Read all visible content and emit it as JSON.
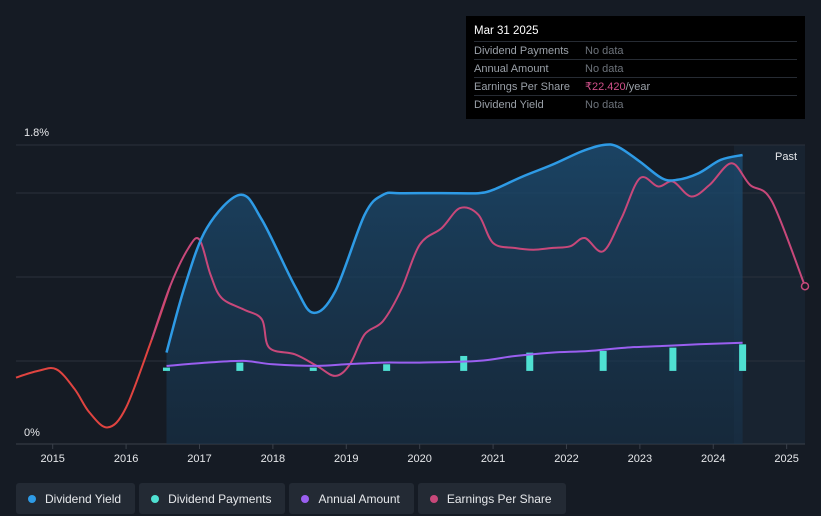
{
  "tooltip": {
    "date": "Mar 31 2025",
    "rows": [
      {
        "label": "Dividend Payments",
        "value": "No data"
      },
      {
        "label": "Annual Amount",
        "value": "No data"
      },
      {
        "label": "Earnings Per Share",
        "value": "₹22.420",
        "unit": "/year"
      },
      {
        "label": "Dividend Yield",
        "value": "No data"
      }
    ]
  },
  "legend": [
    {
      "label": "Dividend Yield",
      "color": "#2e9be6"
    },
    {
      "label": "Dividend Payments",
      "color": "#4fe0d2"
    },
    {
      "label": "Annual Amount",
      "color": "#9a5ff0"
    },
    {
      "label": "Earnings Per Share",
      "color": "#c8487a"
    }
  ],
  "chart_data": {
    "type": "line",
    "title": "",
    "ylabel": "",
    "xlabel": "",
    "y_axis_labels": {
      "top": "1.8%",
      "bottom": "0%"
    },
    "ylim": [
      0,
      1.8
    ],
    "xlim": [
      2014.5,
      2025.25
    ],
    "x_ticks": [
      "2015",
      "2016",
      "2017",
      "2018",
      "2019",
      "2020",
      "2021",
      "2022",
      "2023",
      "2024",
      "2025"
    ],
    "past_label": "Past",
    "series": [
      {
        "name": "Dividend Yield",
        "unit": "%",
        "color": "#2e9be6",
        "points": [
          [
            2016.55,
            0.55
          ],
          [
            2016.8,
            0.95
          ],
          [
            2017.1,
            1.3
          ],
          [
            2017.55,
            1.5
          ],
          [
            2017.85,
            1.35
          ],
          [
            2018.3,
            0.95
          ],
          [
            2018.55,
            0.79
          ],
          [
            2018.85,
            0.92
          ],
          [
            2019.25,
            1.38
          ],
          [
            2019.5,
            1.5
          ],
          [
            2019.75,
            1.51
          ],
          [
            2020.5,
            1.51
          ],
          [
            2020.8,
            1.51
          ],
          [
            2021.0,
            1.53
          ],
          [
            2021.4,
            1.61
          ],
          [
            2021.8,
            1.68
          ],
          [
            2022.2,
            1.76
          ],
          [
            2022.5,
            1.8
          ],
          [
            2022.7,
            1.79
          ],
          [
            2023.0,
            1.7
          ],
          [
            2023.3,
            1.6
          ],
          [
            2023.5,
            1.59
          ],
          [
            2023.8,
            1.63
          ],
          [
            2024.1,
            1.71
          ],
          [
            2024.4,
            1.74
          ]
        ]
      },
      {
        "name": "Earnings Per Share",
        "unit": "indexed",
        "color": "#c8487a",
        "faded_before": 2016.55,
        "faded_color": "#e04440",
        "points": [
          [
            2014.5,
            0.4
          ],
          [
            2014.8,
            0.44
          ],
          [
            2015.05,
            0.45
          ],
          [
            2015.3,
            0.33
          ],
          [
            2015.5,
            0.19
          ],
          [
            2015.75,
            0.1
          ],
          [
            2016.0,
            0.22
          ],
          [
            2016.35,
            0.63
          ],
          [
            2016.6,
            0.95
          ],
          [
            2016.85,
            1.18
          ],
          [
            2017.0,
            1.23
          ],
          [
            2017.15,
            1.02
          ],
          [
            2017.3,
            0.88
          ],
          [
            2017.6,
            0.81
          ],
          [
            2017.85,
            0.75
          ],
          [
            2017.95,
            0.58
          ],
          [
            2018.3,
            0.54
          ],
          [
            2018.6,
            0.47
          ],
          [
            2018.85,
            0.41
          ],
          [
            2019.05,
            0.48
          ],
          [
            2019.25,
            0.66
          ],
          [
            2019.5,
            0.74
          ],
          [
            2019.75,
            0.93
          ],
          [
            2020.0,
            1.2
          ],
          [
            2020.3,
            1.3
          ],
          [
            2020.55,
            1.42
          ],
          [
            2020.8,
            1.38
          ],
          [
            2021.0,
            1.21
          ],
          [
            2021.3,
            1.18
          ],
          [
            2021.55,
            1.17
          ],
          [
            2021.8,
            1.18
          ],
          [
            2022.05,
            1.19
          ],
          [
            2022.25,
            1.24
          ],
          [
            2022.5,
            1.16
          ],
          [
            2022.75,
            1.36
          ],
          [
            2023.0,
            1.6
          ],
          [
            2023.25,
            1.55
          ],
          [
            2023.45,
            1.58
          ],
          [
            2023.7,
            1.49
          ],
          [
            2023.95,
            1.56
          ],
          [
            2024.25,
            1.69
          ],
          [
            2024.5,
            1.56
          ],
          [
            2024.8,
            1.46
          ],
          [
            2025.25,
            0.95
          ]
        ]
      },
      {
        "name": "Annual Amount",
        "unit": "indexed",
        "color": "#9a5ff0",
        "points": [
          [
            2016.55,
            0.47
          ],
          [
            2017.1,
            0.49
          ],
          [
            2017.6,
            0.5
          ],
          [
            2018.0,
            0.48
          ],
          [
            2018.6,
            0.47
          ],
          [
            2019.0,
            0.48
          ],
          [
            2019.5,
            0.49
          ],
          [
            2020.0,
            0.49
          ],
          [
            2020.8,
            0.5
          ],
          [
            2021.3,
            0.53
          ],
          [
            2021.8,
            0.55
          ],
          [
            2022.3,
            0.56
          ],
          [
            2022.8,
            0.58
          ],
          [
            2023.3,
            0.59
          ],
          [
            2023.8,
            0.6
          ],
          [
            2024.4,
            0.61
          ]
        ]
      },
      {
        "name": "Dividend Payments",
        "unit": "indexed",
        "color": "#4fe0d2",
        "bars": [
          [
            2016.55,
            0.02
          ],
          [
            2017.55,
            0.05
          ],
          [
            2018.55,
            0.02
          ],
          [
            2019.55,
            0.04
          ],
          [
            2020.6,
            0.09
          ],
          [
            2021.5,
            0.11
          ],
          [
            2022.5,
            0.12
          ],
          [
            2023.45,
            0.14
          ],
          [
            2024.4,
            0.16
          ]
        ]
      }
    ]
  }
}
